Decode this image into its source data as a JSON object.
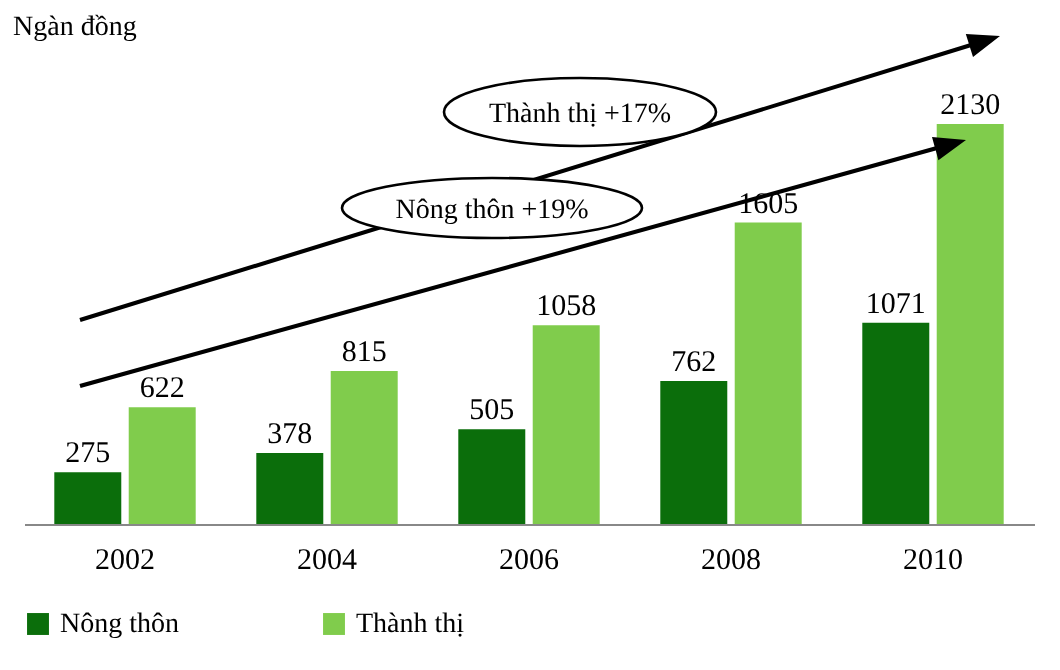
{
  "chart_data": {
    "type": "bar",
    "ylabel": "Ngàn đồng",
    "categories": [
      "2002",
      "2004",
      "2006",
      "2008",
      "2010"
    ],
    "series": [
      {
        "name": "Nông thôn",
        "color": "#0b6e0b",
        "values": [
          275,
          378,
          505,
          762,
          1071
        ]
      },
      {
        "name": "Thành thị",
        "color": "#80cc4c",
        "values": [
          622,
          815,
          1058,
          1605,
          2130
        ]
      }
    ],
    "annotations": [
      "Thành thị +17%",
      "Nông thôn +19%"
    ],
    "data_labels": true,
    "legend": "bottom",
    "grid": false
  }
}
